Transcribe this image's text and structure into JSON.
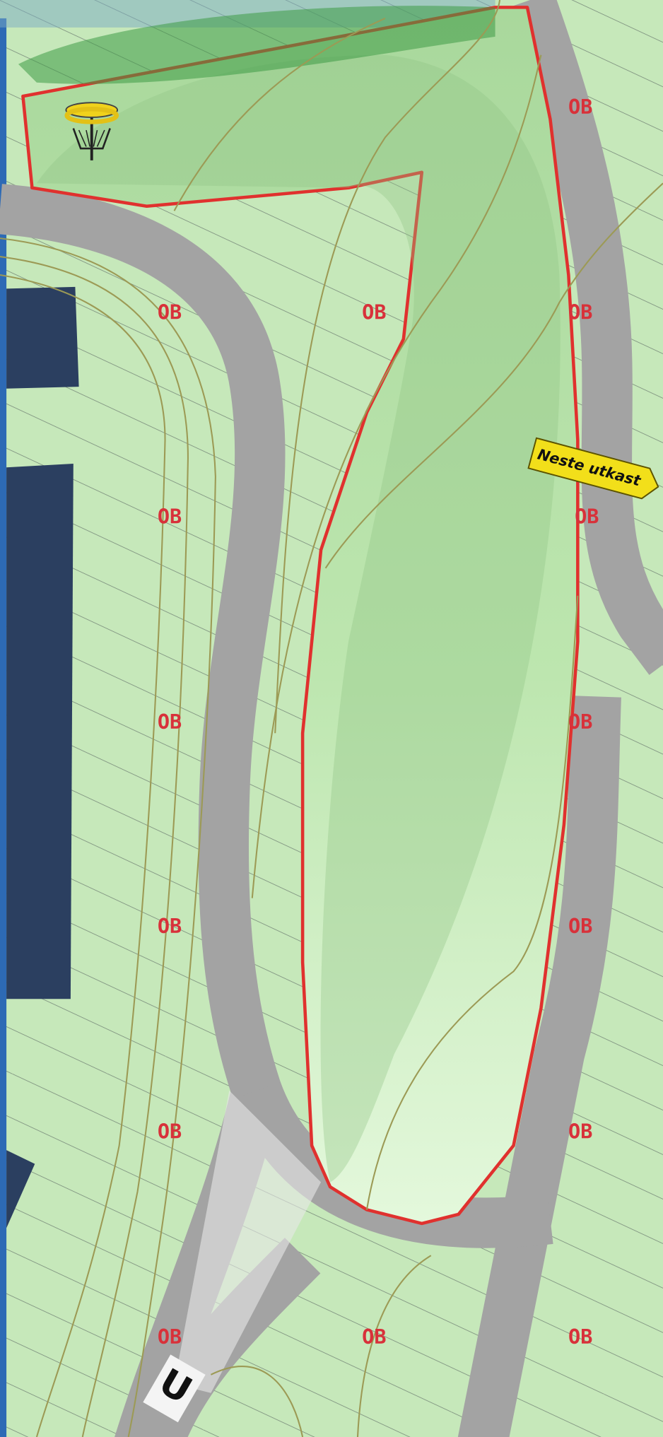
{
  "ob_labels": [
    "OB",
    "OB",
    "OB",
    "OB",
    "OB",
    "OB",
    "OB",
    "OB",
    "OB",
    "OB",
    "OB",
    "OB",
    "OB",
    "OB",
    "OB"
  ],
  "next_tee_sign": "Neste utkast",
  "tee_marker": "U"
}
